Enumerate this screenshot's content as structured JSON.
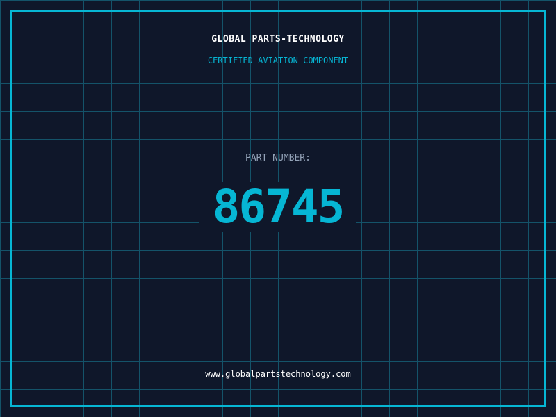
{
  "header": {
    "title": "GLOBAL PARTS-TECHNOLOGY",
    "subtitle": "CERTIFIED AVIATION COMPONENT"
  },
  "part": {
    "label": "PART NUMBER:",
    "number": "86745"
  },
  "footer": {
    "url": "www.globalpartstechnology.com"
  },
  "colors": {
    "background": "#0f172a",
    "accent": "#06b6d4",
    "grid": "#155e75",
    "label": "#94a3b8"
  }
}
